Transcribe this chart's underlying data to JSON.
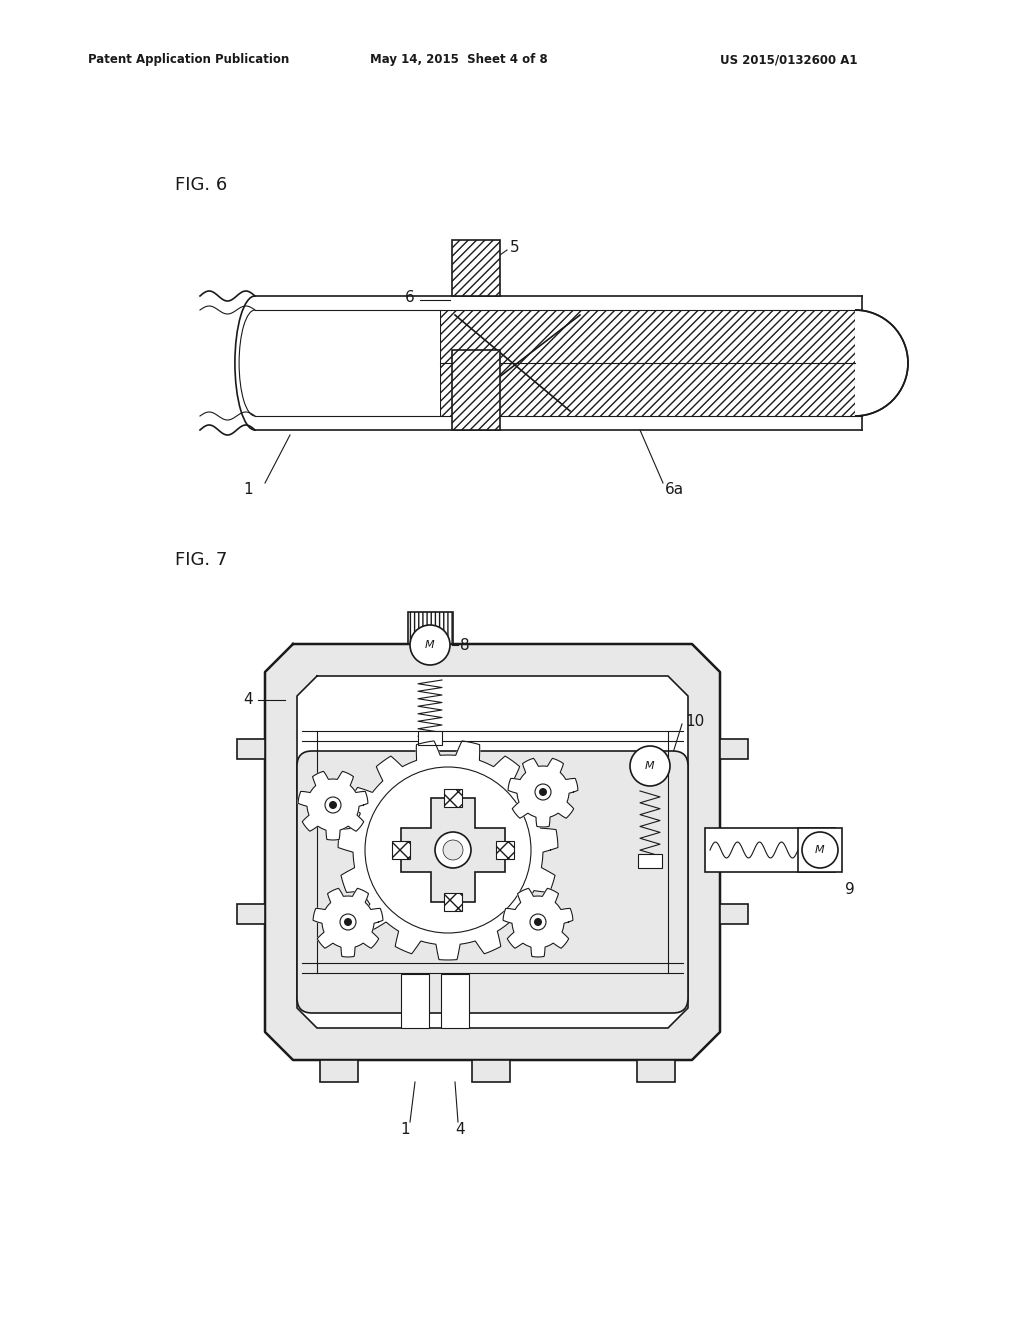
{
  "header_left": "Patent Application Publication",
  "header_center": "May 14, 2015  Sheet 4 of 8",
  "header_right": "US 2015/0132600 A1",
  "fig6_label": "FIG. 6",
  "fig7_label": "FIG. 7",
  "bg_color": "#ffffff",
  "line_color": "#1a1a1a",
  "gray_fill": "#d0d0d0",
  "light_gray": "#e8e8e8"
}
